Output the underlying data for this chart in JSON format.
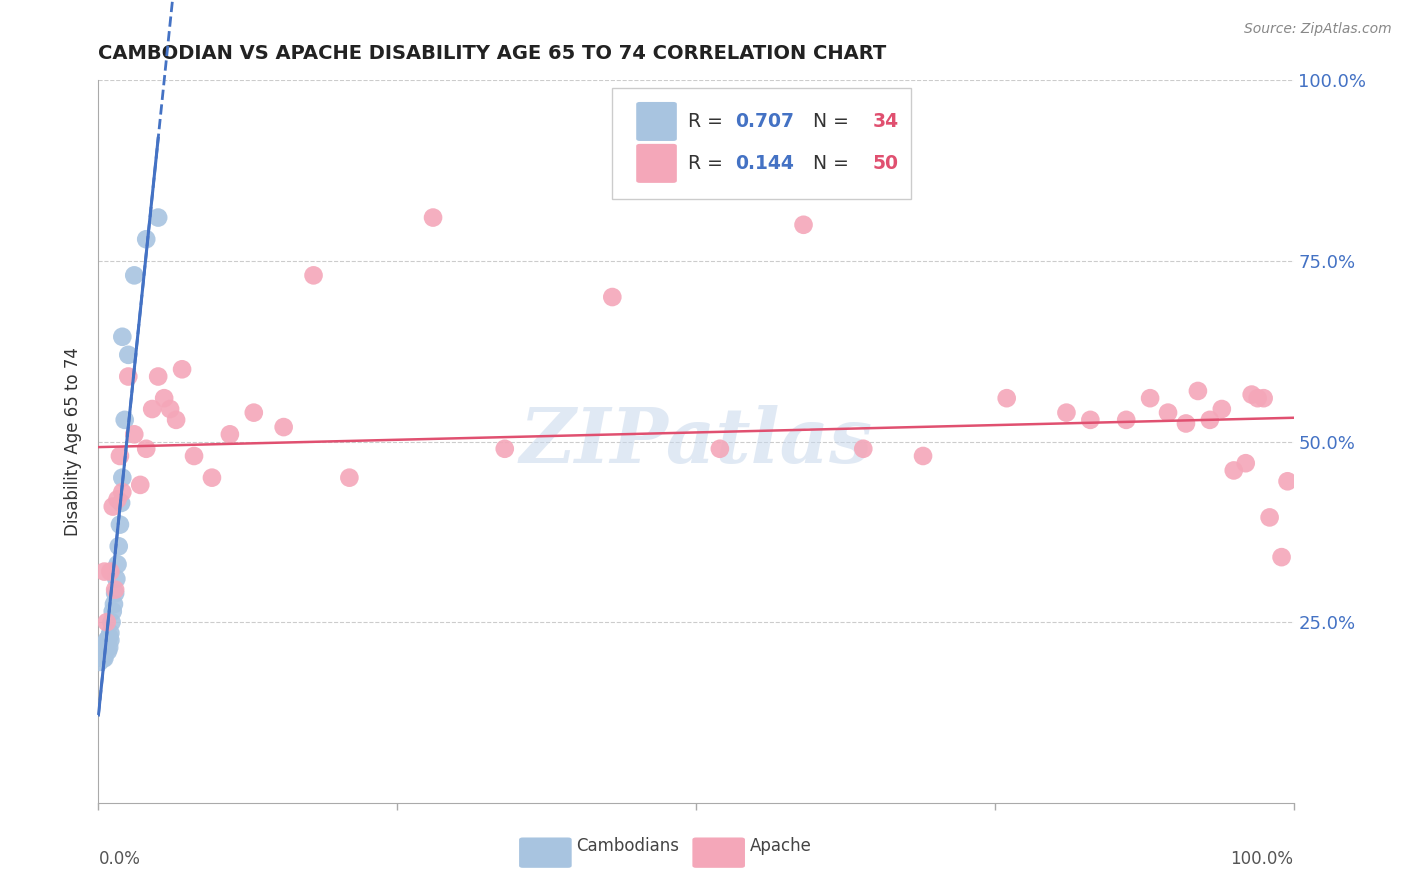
{
  "title": "CAMBODIAN VS APACHE DISABILITY AGE 65 TO 74 CORRELATION CHART",
  "source": "Source: ZipAtlas.com",
  "ylabel": "Disability Age 65 to 74",
  "legend_label1": "Cambodians",
  "legend_label2": "Apache",
  "R_cambodian": 0.707,
  "N_cambodian": 34,
  "R_apache": 0.144,
  "N_apache": 50,
  "xlim": [
    0.0,
    1.0
  ],
  "ylim": [
    0.0,
    1.0
  ],
  "ytick_values": [
    0.25,
    0.5,
    0.75,
    1.0
  ],
  "ytick_labels": [
    "25.0%",
    "50.0%",
    "75.0%",
    "100.0%"
  ],
  "cambodian_color": "#a8c4e0",
  "apache_color": "#f4a7b9",
  "cambodian_line_color": "#4472c4",
  "apache_line_color": "#e05070",
  "watermark_color": "#c8d8ec",
  "cam_x": [
    0.001,
    0.002,
    0.003,
    0.003,
    0.004,
    0.004,
    0.005,
    0.005,
    0.006,
    0.006,
    0.007,
    0.007,
    0.008,
    0.008,
    0.009,
    0.009,
    0.01,
    0.01,
    0.011,
    0.012,
    0.013,
    0.014,
    0.015,
    0.016,
    0.017,
    0.018,
    0.019,
    0.02,
    0.022,
    0.025,
    0.03,
    0.04,
    0.05,
    0.02
  ],
  "cam_y": [
    0.195,
    0.205,
    0.21,
    0.215,
    0.2,
    0.21,
    0.2,
    0.21,
    0.215,
    0.22,
    0.215,
    0.225,
    0.21,
    0.225,
    0.215,
    0.23,
    0.225,
    0.235,
    0.25,
    0.265,
    0.275,
    0.29,
    0.31,
    0.33,
    0.355,
    0.385,
    0.415,
    0.45,
    0.53,
    0.62,
    0.73,
    0.78,
    0.81,
    0.645
  ],
  "apa_x": [
    0.005,
    0.007,
    0.01,
    0.012,
    0.014,
    0.016,
    0.018,
    0.02,
    0.025,
    0.03,
    0.035,
    0.04,
    0.045,
    0.05,
    0.055,
    0.06,
    0.065,
    0.07,
    0.08,
    0.095,
    0.11,
    0.13,
    0.155,
    0.18,
    0.21,
    0.28,
    0.34,
    0.43,
    0.52,
    0.59,
    0.64,
    0.69,
    0.76,
    0.81,
    0.83,
    0.86,
    0.88,
    0.895,
    0.91,
    0.92,
    0.93,
    0.94,
    0.95,
    0.96,
    0.965,
    0.97,
    0.975,
    0.98,
    0.99,
    0.995
  ],
  "apa_y": [
    0.32,
    0.25,
    0.32,
    0.41,
    0.295,
    0.42,
    0.48,
    0.43,
    0.59,
    0.51,
    0.44,
    0.49,
    0.545,
    0.59,
    0.56,
    0.545,
    0.53,
    0.6,
    0.48,
    0.45,
    0.51,
    0.54,
    0.52,
    0.73,
    0.45,
    0.81,
    0.49,
    0.7,
    0.49,
    0.8,
    0.49,
    0.48,
    0.56,
    0.54,
    0.53,
    0.53,
    0.56,
    0.54,
    0.525,
    0.57,
    0.53,
    0.545,
    0.46,
    0.47,
    0.565,
    0.56,
    0.56,
    0.395,
    0.34,
    0.445
  ]
}
